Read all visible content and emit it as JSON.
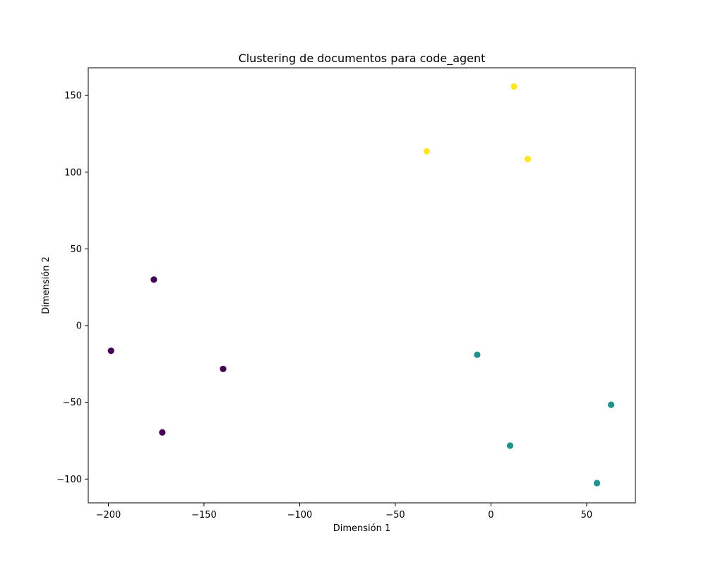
{
  "chart_data": {
    "type": "scatter",
    "title": "Clustering de documentos para code_agent",
    "xlabel": "Dimensión 1",
    "ylabel": "Dimensión 2",
    "xlim": [
      -210.5,
      75.5
    ],
    "ylim": [
      -115.5,
      168
    ],
    "xticks": [
      -200,
      -150,
      -100,
      -50,
      0,
      50
    ],
    "xtick_labels": [
      "−200",
      "−150",
      "−100",
      "−50",
      "0",
      "50"
    ],
    "yticks": [
      -100,
      -50,
      0,
      50,
      100,
      150
    ],
    "ytick_labels": [
      "−100",
      "−50",
      "0",
      "50",
      "100",
      "150"
    ],
    "grid": false,
    "legend": false,
    "cluster_colors": [
      "#440154",
      "#21918c",
      "#fde725"
    ],
    "points": [
      {
        "x": -176.2,
        "y": 30.0,
        "cluster": 0
      },
      {
        "x": -198.6,
        "y": -16.4,
        "cluster": 0
      },
      {
        "x": -140.0,
        "y": -28.2,
        "cluster": 0
      },
      {
        "x": -171.8,
        "y": -69.6,
        "cluster": 0
      },
      {
        "x": -7.2,
        "y": -19.0,
        "cluster": 1
      },
      {
        "x": 62.8,
        "y": -51.6,
        "cluster": 1
      },
      {
        "x": 10.0,
        "y": -78.2,
        "cluster": 1
      },
      {
        "x": 55.4,
        "y": -102.6,
        "cluster": 1
      },
      {
        "x": 12.0,
        "y": 155.8,
        "cluster": 2
      },
      {
        "x": -33.6,
        "y": 113.6,
        "cluster": 2
      },
      {
        "x": 19.2,
        "y": 108.6,
        "cluster": 2
      }
    ]
  }
}
